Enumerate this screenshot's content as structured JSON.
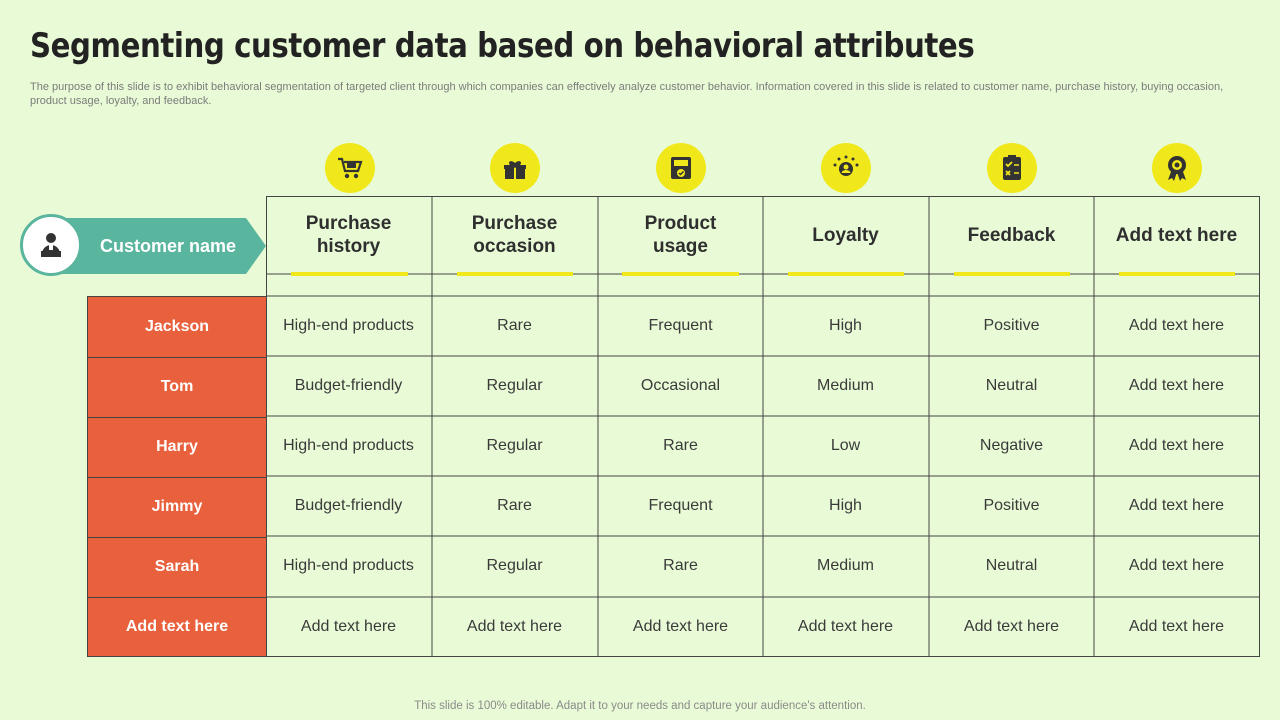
{
  "title": "Segmenting customer data based on behavioral attributes",
  "subtitle": "The purpose of this slide is to exhibit behavioral segmentation of targeted client through which companies can effectively analyze customer behavior. Information covered in this slide is related to customer name, purchase history, buying occasion, product usage, loyalty, and feedback.",
  "footer": "This slide is 100% editable. Adapt it to your needs and capture your audience's attention.",
  "colors": {
    "background": "#e9fbd6",
    "accent_yellow": "#f1e81c",
    "name_column": "#e8603c",
    "teal": "#5ab59e"
  },
  "table": {
    "row_header_label": "Customer name",
    "columns": [
      {
        "label_lines": [
          "Purchase",
          "history"
        ],
        "icon": "shopping-cart-icon"
      },
      {
        "label_lines": [
          "Purchase",
          "occasion"
        ],
        "icon": "gift-heart-icon"
      },
      {
        "label_lines": [
          "Product",
          "usage"
        ],
        "icon": "product-box-icon"
      },
      {
        "label_lines": [
          "Loyalty"
        ],
        "icon": "loyalty-star-icon"
      },
      {
        "label_lines": [
          "Feedback"
        ],
        "icon": "checklist-icon"
      },
      {
        "label_lines": [
          "Add text here"
        ],
        "icon": "award-badge-icon"
      }
    ],
    "rows": [
      {
        "name": "Jackson",
        "cells": [
          "High-end products",
          "Rare",
          "Frequent",
          "High",
          "Positive",
          "Add text here"
        ]
      },
      {
        "name": "Tom",
        "cells": [
          "Budget-friendly",
          "Regular",
          "Occasional",
          "Medium",
          "Neutral",
          "Add text here"
        ]
      },
      {
        "name": "Harry",
        "cells": [
          "High-end products",
          "Regular",
          "Rare",
          "Low",
          "Negative",
          "Add text here"
        ]
      },
      {
        "name": "Jimmy",
        "cells": [
          "Budget-friendly",
          "Rare",
          "Frequent",
          "High",
          "Positive",
          "Add text here"
        ]
      },
      {
        "name": "Sarah",
        "cells": [
          "High-end products",
          "Regular",
          "Rare",
          "Medium",
          "Neutral",
          "Add text here"
        ]
      },
      {
        "name": "Add text here",
        "cells": [
          "Add text here",
          "Add text here",
          "Add text here",
          "Add text here",
          "Add text here",
          "Add text here"
        ]
      }
    ]
  }
}
